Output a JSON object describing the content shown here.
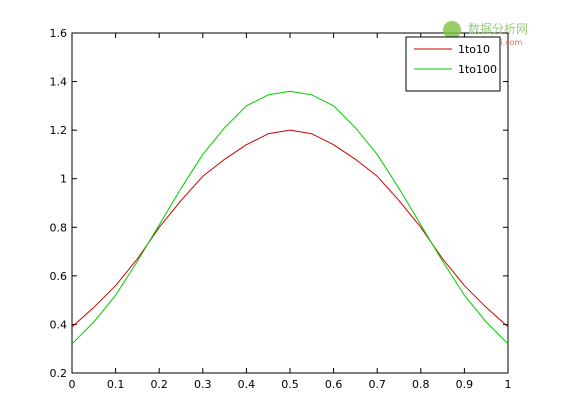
{
  "chart_data": {
    "type": "line",
    "x": [
      0,
      0.05,
      0.1,
      0.15,
      0.2,
      0.25,
      0.3,
      0.35,
      0.4,
      0.45,
      0.5,
      0.55,
      0.6,
      0.65,
      0.7,
      0.75,
      0.8,
      0.85,
      0.9,
      0.95,
      1
    ],
    "series": [
      {
        "name": "1to10",
        "color": "#cc0000",
        "values": [
          0.39,
          0.47,
          0.56,
          0.67,
          0.8,
          0.91,
          1.01,
          1.08,
          1.14,
          1.185,
          1.2,
          1.185,
          1.14,
          1.08,
          1.01,
          0.91,
          0.8,
          0.67,
          0.56,
          0.47,
          0.39
        ]
      },
      {
        "name": "1to100",
        "color": "#00cc00",
        "values": [
          0.32,
          0.41,
          0.52,
          0.66,
          0.81,
          0.96,
          1.1,
          1.21,
          1.3,
          1.345,
          1.36,
          1.345,
          1.3,
          1.21,
          1.1,
          0.96,
          0.81,
          0.66,
          0.52,
          0.41,
          0.32
        ]
      }
    ],
    "xlim": [
      0,
      1
    ],
    "xticks": [
      0,
      0.1,
      0.2,
      0.3,
      0.4,
      0.5,
      0.6,
      0.7,
      0.8,
      0.9,
      1
    ],
    "ylim": [
      0.2,
      1.6
    ],
    "yticks": [
      0.2,
      0.4,
      0.6,
      0.8,
      1,
      1.2,
      1.4,
      1.6
    ],
    "grid": false,
    "legend": "top-right"
  },
  "watermark": {
    "title": "数据分析网",
    "url": "afenxi.com"
  }
}
